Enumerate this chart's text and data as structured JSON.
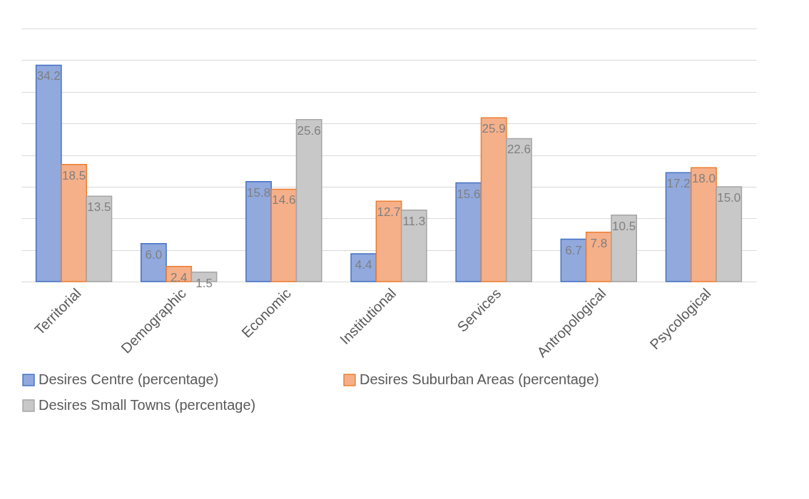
{
  "chart_data": {
    "type": "bar",
    "categories": [
      "Territorial",
      "Demographic",
      "Economic",
      "Institutional",
      "Services",
      "Antropological",
      "Psycological"
    ],
    "series": [
      {
        "name": "Desires Centre (percentage)",
        "color": "#91a9dd",
        "values": [
          34.2,
          6.0,
          15.8,
          4.4,
          15.6,
          6.7,
          17.2
        ],
        "value_labels": [
          "34.2",
          "6.0",
          "15.8",
          "4.4",
          "15.6",
          "6.7",
          "17.2"
        ]
      },
      {
        "name": "Desires Suburban Areas (percentage)",
        "color": "#f5b08a",
        "values": [
          18.5,
          2.4,
          14.6,
          12.7,
          25.9,
          7.8,
          18.0
        ],
        "value_labels": [
          "18.5",
          "2.4",
          "14.6",
          "12.7",
          "25.9",
          "7.8",
          "18.0"
        ]
      },
      {
        "name": "Desires Small Towns (percentage)",
        "color": "#c8c8c8",
        "values": [
          13.5,
          1.5,
          25.6,
          11.3,
          22.6,
          10.5,
          15.0
        ],
        "value_labels": [
          "13.5",
          "1.5",
          "25.6",
          "11.3",
          "22.6",
          "10.5",
          "15.0"
        ]
      }
    ],
    "ylim": [
      0,
      40
    ],
    "yticks": [
      {
        "value": 0,
        "label": null
      },
      {
        "value": 5,
        "label": null
      },
      {
        "value": 10,
        "label": null
      },
      {
        "value": 15,
        "label": null
      },
      {
        "value": 20,
        "label": null
      },
      {
        "value": 25,
        "label": null
      },
      {
        "value": 30,
        "label": null
      },
      {
        "value": 35,
        "label": null
      },
      {
        "value": 40,
        "label": null
      }
    ],
    "tick_labels": "x",
    "grid": "y",
    "legend": "bottom"
  }
}
